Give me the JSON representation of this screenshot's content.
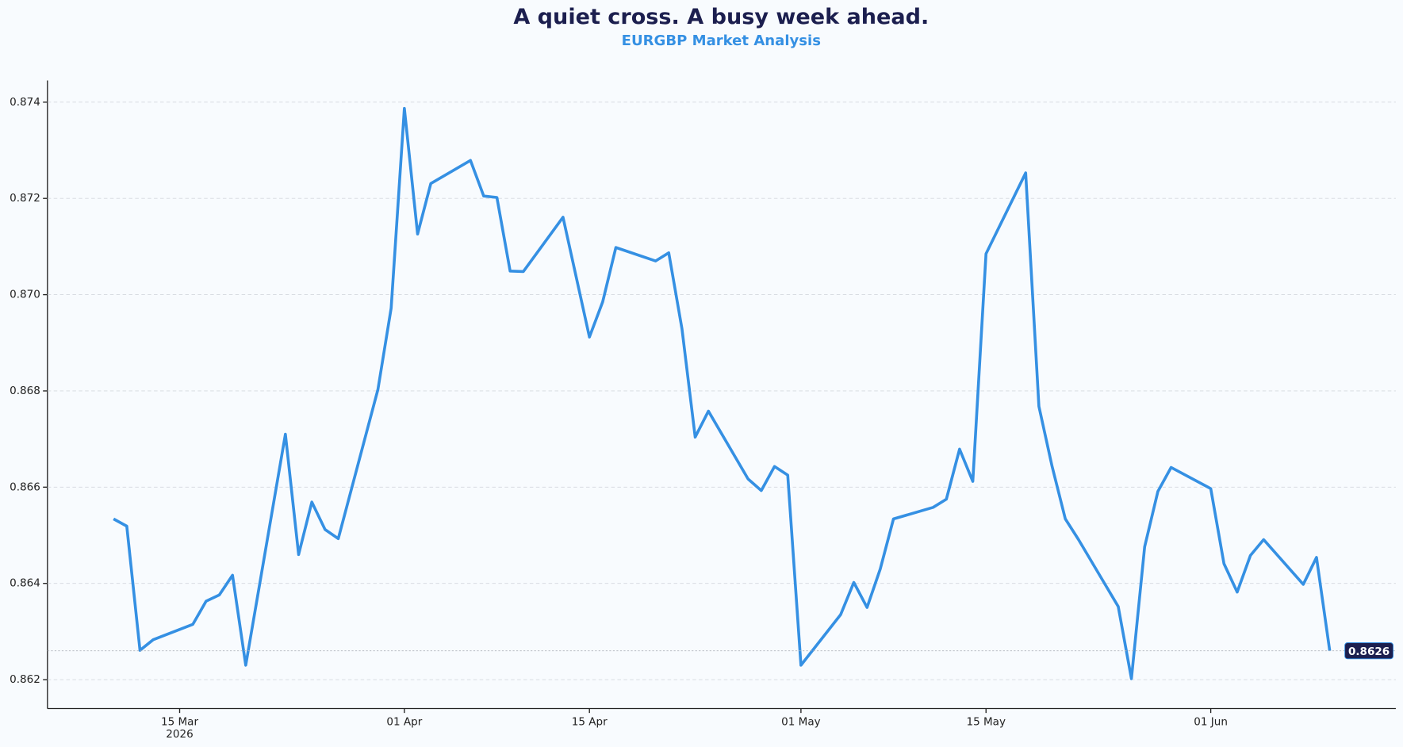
{
  "chart_data": {
    "type": "line",
    "title": "A quiet cross. A busy week ahead.",
    "subtitle": "EURGBP Market Analysis",
    "x": [
      "2026-03-10",
      "2026-03-11",
      "2026-03-12",
      "2026-03-13",
      "2026-03-16",
      "2026-03-17",
      "2026-03-18",
      "2026-03-19",
      "2026-03-20",
      "2026-03-23",
      "2026-03-24",
      "2026-03-25",
      "2026-03-26",
      "2026-03-27",
      "2026-03-30",
      "2026-03-31",
      "2026-04-01",
      "2026-04-02",
      "2026-04-03",
      "2026-04-06",
      "2026-04-07",
      "2026-04-08",
      "2026-04-09",
      "2026-04-10",
      "2026-04-13",
      "2026-04-15",
      "2026-04-16",
      "2026-04-17",
      "2026-04-20",
      "2026-04-21",
      "2026-04-22",
      "2026-04-23",
      "2026-04-24",
      "2026-04-27",
      "2026-04-28",
      "2026-04-29",
      "2026-04-30",
      "2026-05-01",
      "2026-05-04",
      "2026-05-05",
      "2026-05-06",
      "2026-05-07",
      "2026-05-08",
      "2026-05-11",
      "2026-05-12",
      "2026-05-13",
      "2026-05-14",
      "2026-05-15",
      "2026-05-18",
      "2026-05-19",
      "2026-05-20",
      "2026-05-21",
      "2026-05-22",
      "2026-05-25",
      "2026-05-26",
      "2026-05-27",
      "2026-05-28",
      "2026-05-29",
      "2026-06-01",
      "2026-06-02",
      "2026-06-03",
      "2026-06-04",
      "2026-06-05",
      "2026-06-08",
      "2026-06-09",
      "2026-06-10"
    ],
    "series": [
      {
        "name": "EURGBP",
        "color": "#3590e3",
        "values": [
          0.86534,
          0.86519,
          0.86261,
          0.86283,
          0.86315,
          0.86363,
          0.86376,
          0.86417,
          0.8623,
          0.8671,
          0.8646,
          0.86569,
          0.86512,
          0.86493,
          0.86803,
          0.86972,
          0.87387,
          0.87126,
          0.87231,
          0.87279,
          0.87205,
          0.87202,
          0.87049,
          0.87048,
          0.87161,
          0.86912,
          0.86985,
          0.87098,
          0.8707,
          0.87087,
          0.86929,
          0.86704,
          0.86758,
          0.86617,
          0.86593,
          0.86643,
          0.86625,
          0.8623,
          0.86335,
          0.86402,
          0.8635,
          0.8643,
          0.86534,
          0.86558,
          0.86575,
          0.86679,
          0.86612,
          0.87085,
          0.87253,
          0.86768,
          0.86643,
          0.86534,
          0.86491,
          0.86352,
          0.86202,
          0.86476,
          0.86591,
          0.86641,
          0.86597,
          0.86441,
          0.86382,
          0.86458,
          0.86491,
          0.86398,
          0.86454,
          0.8626
        ]
      }
    ],
    "end_label": "0.8626",
    "xlim": [
      "2026-03-05",
      "2026-06-15"
    ],
    "xticks": [
      {
        "value": "2026-03-15",
        "label": "15 Mar"
      },
      {
        "value": "2026-04-01",
        "label": "01 Apr"
      },
      {
        "value": "2026-04-15",
        "label": "15 Apr"
      },
      {
        "value": "2026-05-01",
        "label": "01 May"
      },
      {
        "value": "2026-05-15",
        "label": "15 May"
      },
      {
        "value": "2026-06-01",
        "label": "01 Jun"
      }
    ],
    "x_year_label": "2026",
    "ylim": [
      0.8614,
      0.87445
    ],
    "yticks": [
      0.862,
      0.864,
      0.866,
      0.868,
      {
        "value": 0.87,
        "label": "0.870"
      },
      0.872,
      0.874
    ],
    "grid": true
  }
}
